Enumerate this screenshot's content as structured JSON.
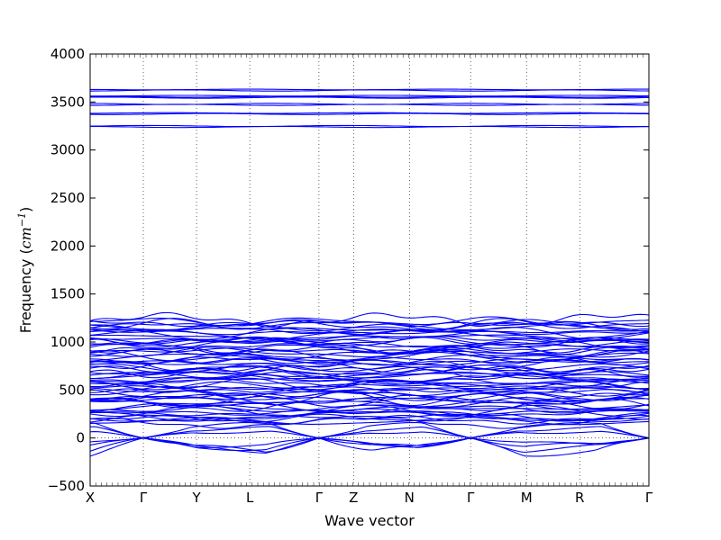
{
  "chart_data": {
    "type": "line",
    "xlabel": "Wave vector",
    "ylabel_main": "Frequency (",
    "ylabel_unit": "cm",
    "ylabel_exp": "−1",
    "ylabel_close": ")",
    "ylim": [
      -500,
      4000
    ],
    "yticks": [
      -500,
      0,
      500,
      1000,
      1500,
      2000,
      2500,
      3000,
      3500,
      4000
    ],
    "kpoints": [
      {
        "label": "X",
        "pos": 0.0
      },
      {
        "label": "Γ",
        "pos": 1.0
      },
      {
        "label": "Y",
        "pos": 2.0
      },
      {
        "label": "L",
        "pos": 3.0
      },
      {
        "label": "Γ",
        "pos": 4.3
      },
      {
        "label": "Z",
        "pos": 4.95
      },
      {
        "label": "N",
        "pos": 6.0
      },
      {
        "label": "Γ",
        "pos": 7.15
      },
      {
        "label": "M",
        "pos": 8.2
      },
      {
        "label": "R",
        "pos": 9.2
      },
      {
        "label": "Γ",
        "pos": 10.5
      }
    ],
    "high_bands_approx": [
      3240,
      3250,
      3375,
      3385,
      3470,
      3480,
      3545,
      3555,
      3565,
      3620,
      3630
    ],
    "mid_band_range": [
      100,
      1230
    ],
    "acoustic_min_approx": -190
  }
}
